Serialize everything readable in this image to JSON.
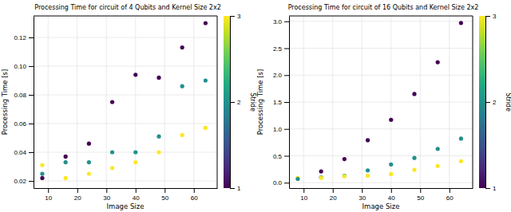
{
  "chart_data": [
    {
      "type": "scatter",
      "title": "Processing Time for circuit of 4 Qubits and Kernel Size 2x2",
      "x_label": "Image Size",
      "y_label": "Processing Time [s]",
      "x": [
        8,
        8,
        8,
        16,
        16,
        16,
        24,
        24,
        24,
        32,
        32,
        32,
        40,
        40,
        40,
        48,
        48,
        48,
        56,
        56,
        56,
        64,
        64,
        64
      ],
      "values": [
        0.031,
        0.025,
        0.022,
        0.037,
        0.033,
        0.022,
        0.046,
        0.033,
        0.025,
        0.075,
        0.04,
        0.029,
        0.094,
        0.04,
        0.033,
        0.092,
        0.051,
        0.04,
        0.113,
        0.086,
        0.052,
        0.13,
        0.09,
        0.057
      ],
      "stride": [
        3,
        2,
        1,
        1,
        2,
        3,
        1,
        2,
        3,
        1,
        2,
        3,
        1,
        2,
        3,
        1,
        2,
        3,
        1,
        2,
        3,
        1,
        2,
        3
      ],
      "xlim": [
        5,
        68
      ],
      "ylim": [
        0.015,
        0.135
      ],
      "xticks": [
        10,
        20,
        30,
        40,
        50,
        60
      ],
      "yticks": [
        0.02,
        0.04,
        0.06,
        0.08,
        {
          "value": 0.1,
          "label": "0.10"
        },
        0.12
      ],
      "grid": true,
      "colorbar": {
        "label": "Stride",
        "lim": [
          1,
          3
        ],
        "ticks": [
          1,
          2,
          3
        ]
      }
    },
    {
      "type": "scatter",
      "title": "Processing Time for circuit of 16 Qubits and Kernel Size 2x2",
      "x_label": "Image Size",
      "y_label": "Processing Time [s]",
      "x": [
        8,
        8,
        16,
        16,
        16,
        24,
        24,
        24,
        32,
        32,
        32,
        40,
        40,
        40,
        48,
        48,
        48,
        56,
        56,
        56,
        64,
        64,
        64
      ],
      "values": [
        0.09,
        0.07,
        0.21,
        0.1,
        0.09,
        0.44,
        0.13,
        0.12,
        0.79,
        0.23,
        0.13,
        1.17,
        0.34,
        0.16,
        1.65,
        0.46,
        0.24,
        2.24,
        0.63,
        0.31,
        2.97,
        0.82,
        0.4
      ],
      "stride": [
        3,
        2,
        1,
        2,
        3,
        1,
        2,
        3,
        1,
        2,
        3,
        1,
        2,
        3,
        1,
        2,
        3,
        1,
        2,
        3,
        1,
        2,
        3
      ],
      "xlim": [
        5,
        68
      ],
      "ylim": [
        -0.1,
        3.1
      ],
      "xticks": [
        10,
        20,
        30,
        40,
        50,
        60
      ],
      "yticks": [
        {
          "value": 0.0,
          "label": "0.0"
        },
        0.5,
        {
          "value": 1.0,
          "label": "1.0"
        },
        1.5,
        {
          "value": 2.0,
          "label": "2.0"
        },
        2.5,
        {
          "value": 3.0,
          "label": "3.0"
        }
      ],
      "grid": true,
      "colorbar": {
        "label": "Stride",
        "lim": [
          1,
          3
        ],
        "ticks": [
          1,
          2,
          3
        ]
      }
    }
  ]
}
